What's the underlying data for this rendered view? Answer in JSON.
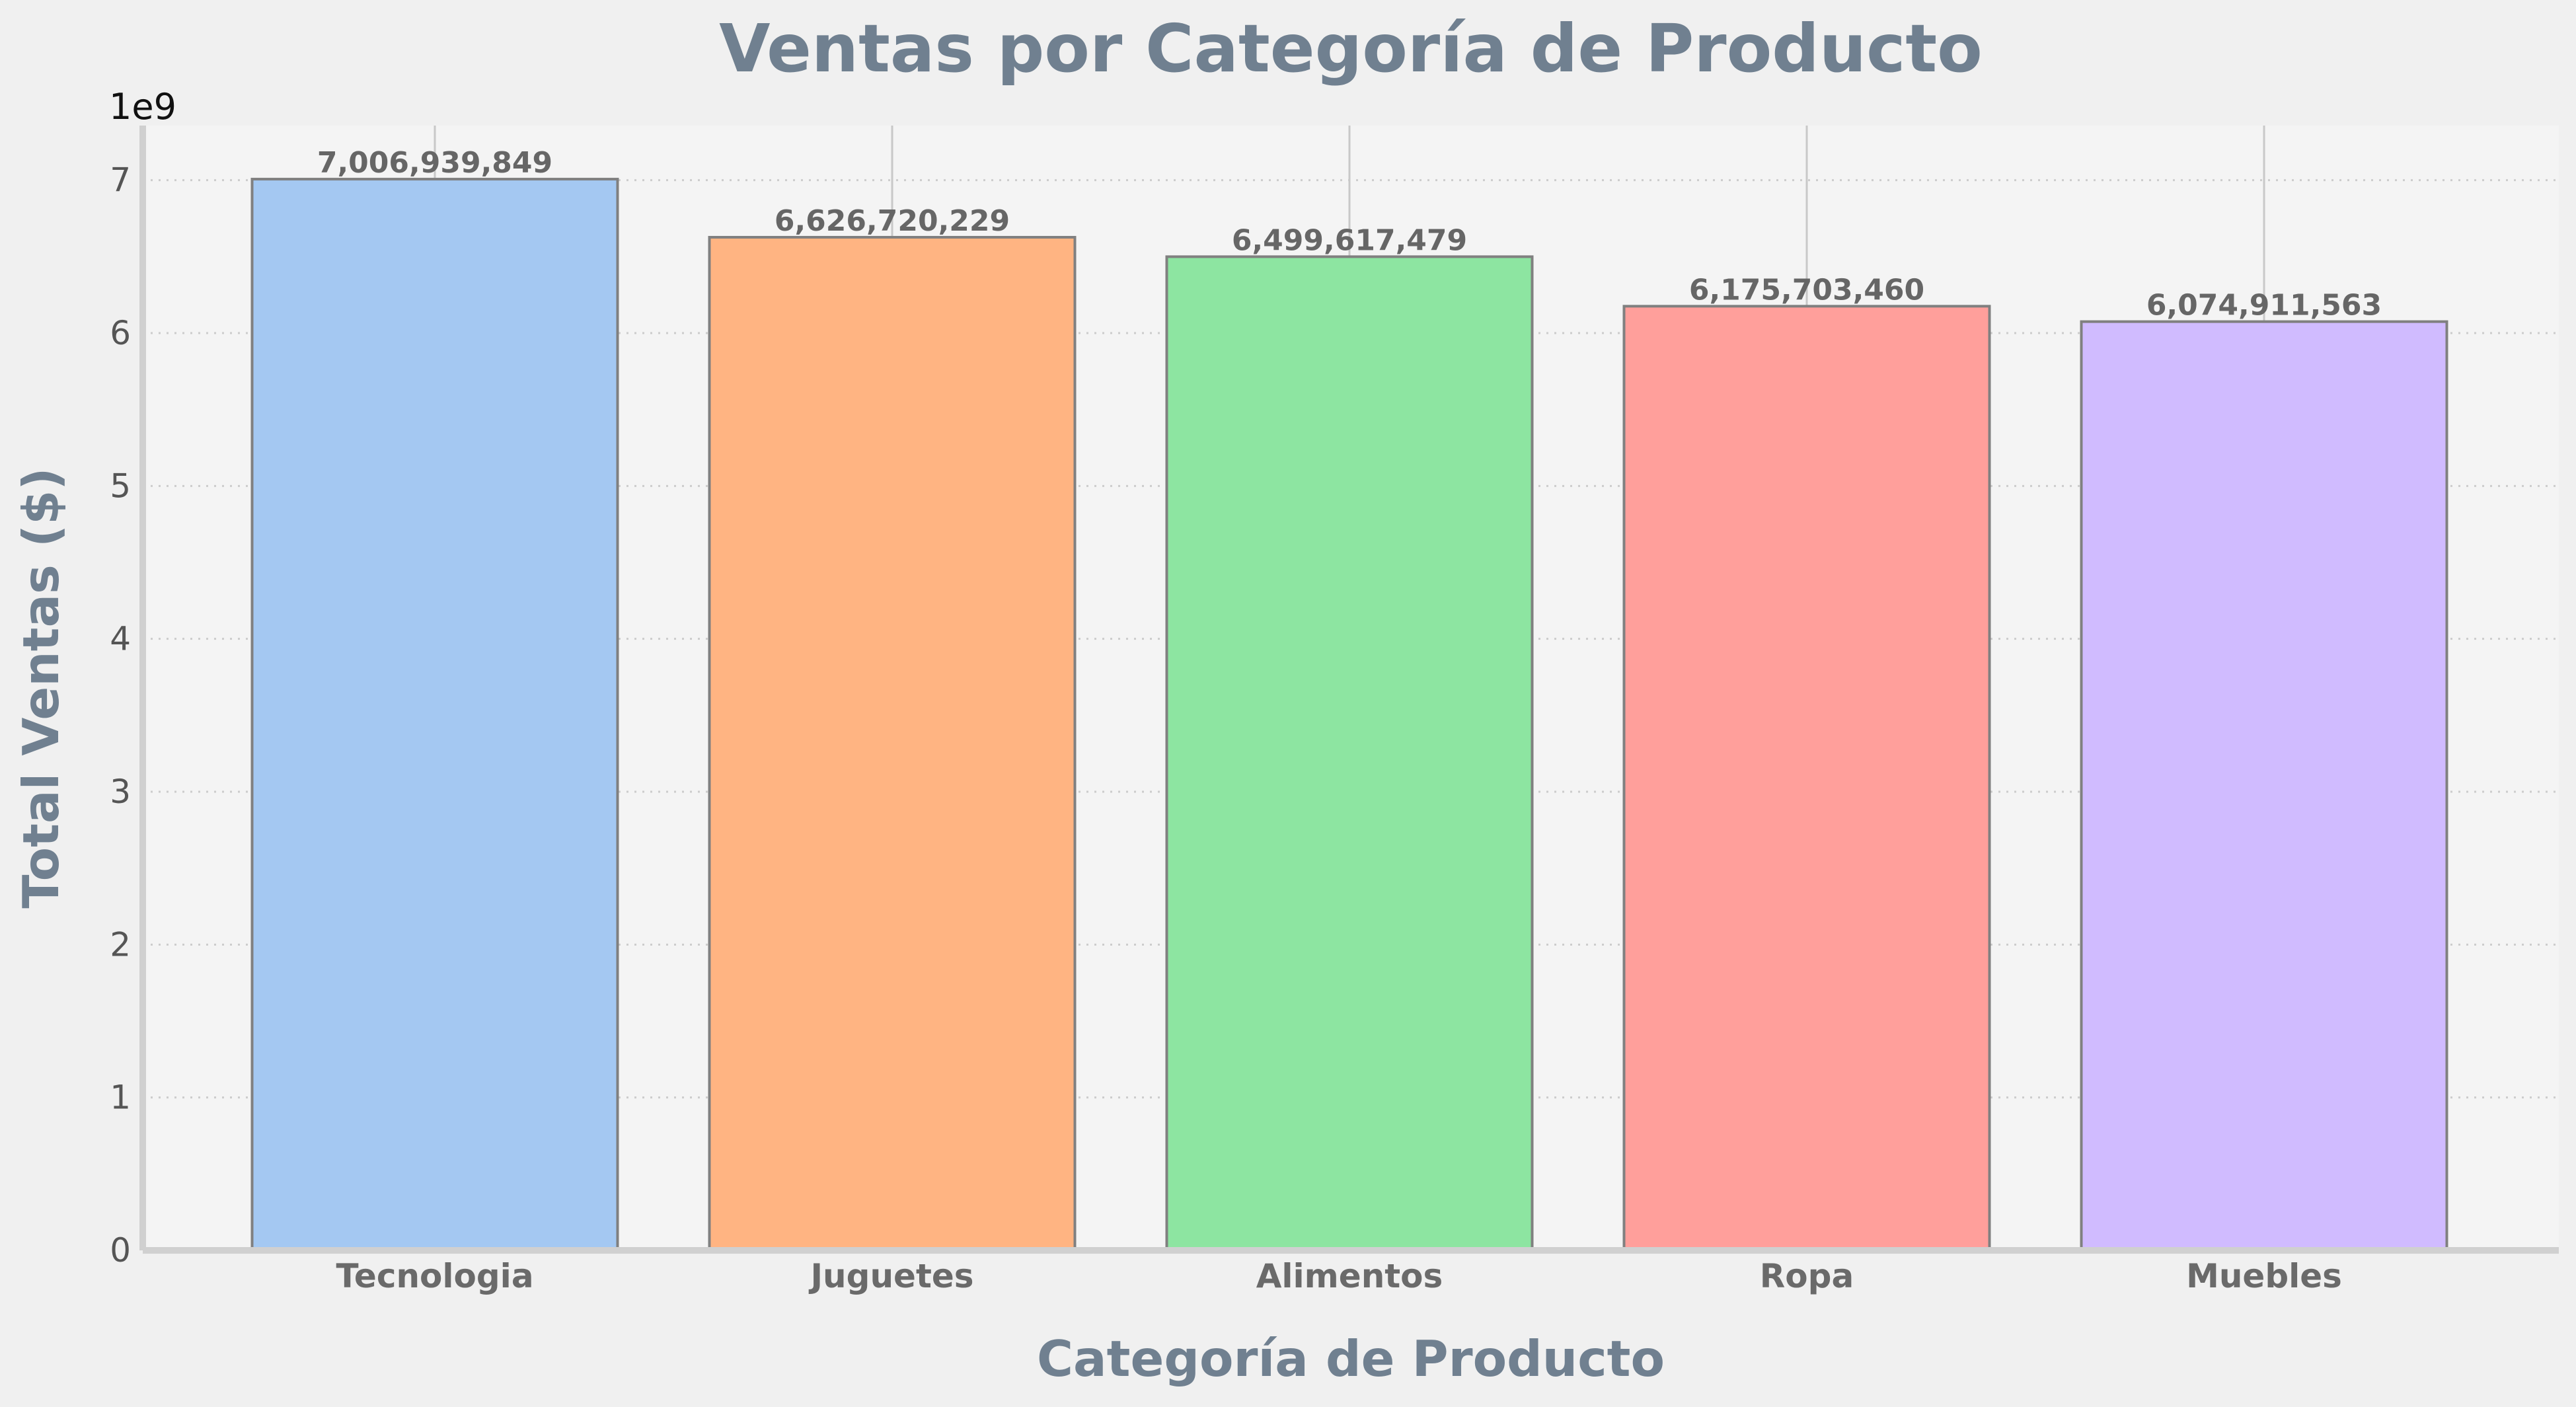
{
  "chart_data": {
    "type": "bar",
    "title": "Ventas por Categoría de Producto",
    "xlabel": "Categoría de Producto",
    "ylabel": "Total Ventas ($)",
    "y_offset_label": "1e9",
    "categories": [
      "Tecnologia",
      "Juguetes",
      "Alimentos",
      "Ropa",
      "Muebles"
    ],
    "values": [
      7006939849,
      6626720229,
      6499617479,
      6175703460,
      6074911563
    ],
    "value_labels": [
      "7,006,939,849",
      "6,626,720,229",
      "6,499,617,479",
      "6,175,703,460",
      "6,074,911,563"
    ],
    "colors": [
      "#a4c8f2",
      "#ffb482",
      "#8de5a1",
      "#ff9f9b",
      "#d0bbff"
    ],
    "yticks": [
      "0",
      "1",
      "2",
      "3",
      "4",
      "5",
      "6",
      "7"
    ],
    "ylim": [
      0,
      7357286841
    ],
    "grid": true,
    "background_color": "#f4f4f4",
    "bar_edge_color": "#808080"
  }
}
